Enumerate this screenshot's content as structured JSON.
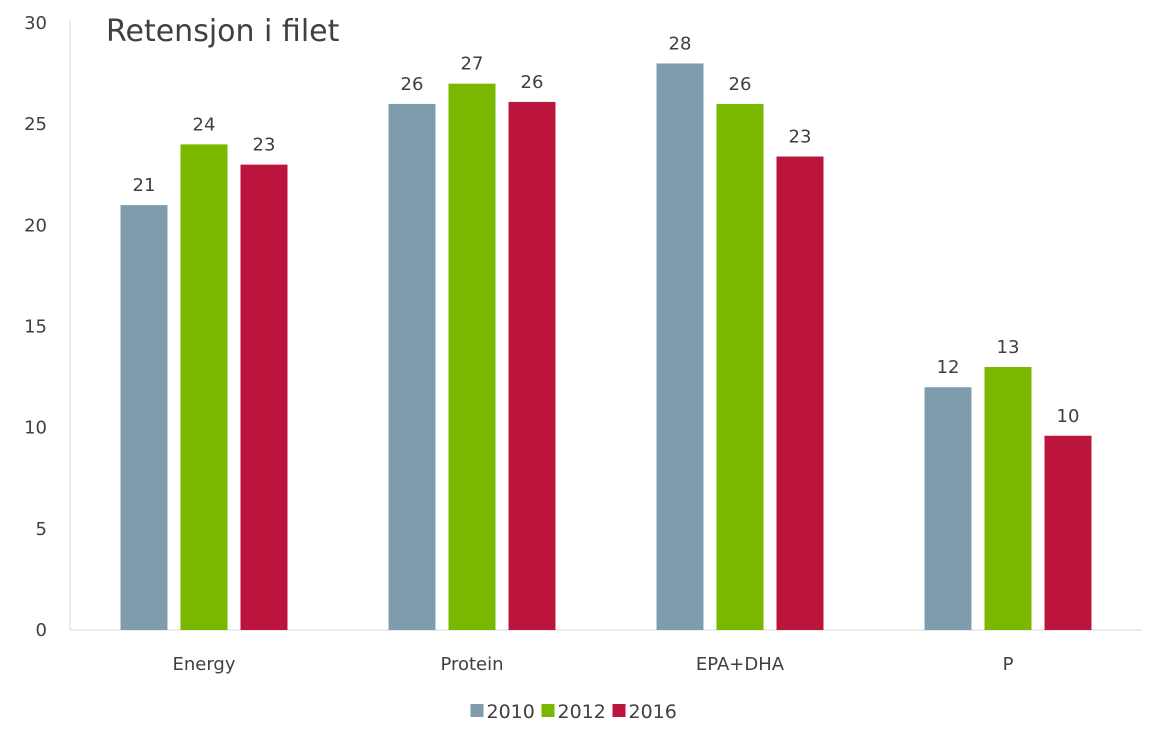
{
  "chart_data": {
    "type": "bar",
    "title": "Retensjon i filet",
    "xlabel": "",
    "ylabel": "",
    "ylim": [
      0,
      30
    ],
    "yticks": [
      0,
      5,
      10,
      15,
      20,
      25,
      30
    ],
    "categories": [
      "Energy",
      "Protein",
      "EPA+DHA",
      "P"
    ],
    "series": [
      {
        "name": "2010",
        "color": "#7f9cad",
        "values": [
          21,
          26,
          28,
          12
        ],
        "labels": [
          "21",
          "26",
          "28",
          "12"
        ]
      },
      {
        "name": "2012",
        "color": "#7ab800",
        "values": [
          24,
          27,
          26,
          13
        ],
        "labels": [
          "24",
          "27",
          "26",
          "13"
        ]
      },
      {
        "name": "2016",
        "color": "#bc153d",
        "values": [
          23,
          26.1,
          23.4,
          9.6
        ],
        "labels": [
          "23",
          "26",
          "23",
          "10"
        ]
      }
    ],
    "legend_position": "bottom-center",
    "grid": false
  }
}
